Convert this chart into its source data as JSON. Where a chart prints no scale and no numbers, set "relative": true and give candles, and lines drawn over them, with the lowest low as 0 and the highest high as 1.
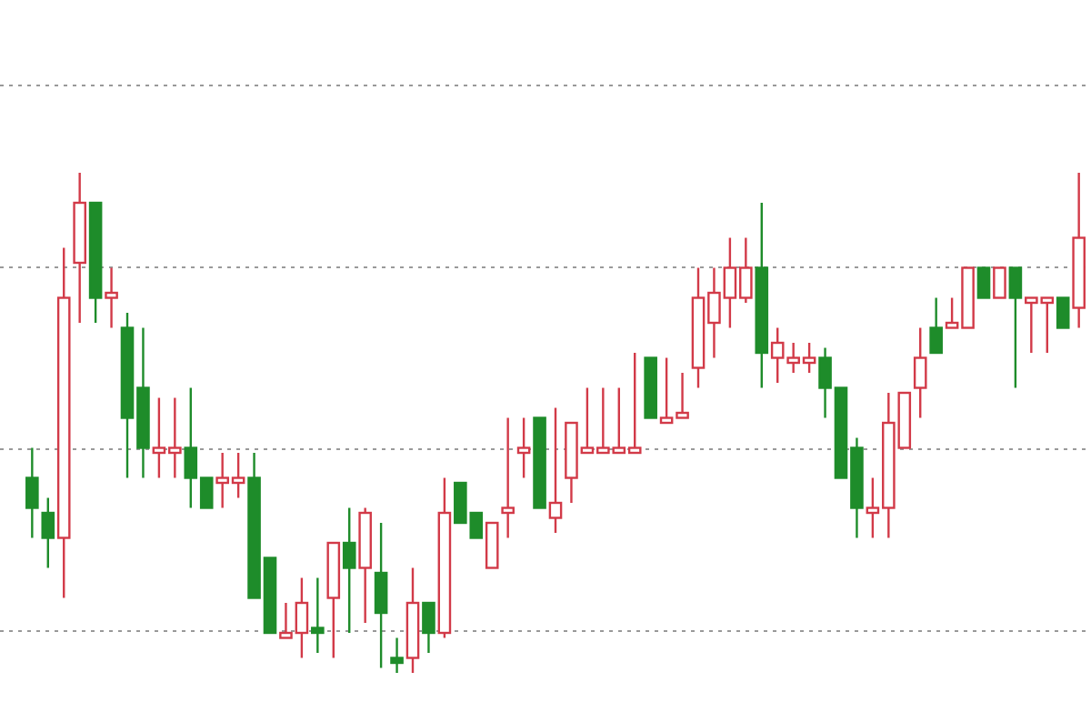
{
  "chart_data": {
    "type": "candlestick",
    "relative": true,
    "grid": "y",
    "categories": [
      null,
      null,
      null,
      null,
      null,
      null,
      null,
      null,
      null,
      null,
      null,
      null,
      null,
      null,
      null,
      null,
      null,
      null,
      null,
      null,
      null,
      null,
      null,
      null,
      null,
      null,
      null,
      null,
      null,
      null,
      null,
      null,
      null,
      null,
      null,
      null,
      null,
      null,
      null,
      null,
      null,
      null,
      null,
      null,
      null,
      null,
      null,
      null,
      null,
      null,
      null,
      null,
      null,
      null,
      null,
      null,
      null,
      null,
      null,
      null,
      null,
      null,
      null,
      null,
      null,
      null,
      null
    ],
    "ohlc": [
      [
        0.39,
        0.45,
        0.27,
        0.33
      ],
      [
        0.32,
        0.35,
        0.21,
        0.27
      ],
      [
        0.27,
        0.85,
        0.15,
        0.75
      ],
      [
        0.82,
        1.0,
        0.7,
        0.94
      ],
      [
        0.94,
        0.94,
        0.7,
        0.75
      ],
      [
        0.75,
        0.81,
        0.69,
        0.76
      ],
      [
        0.69,
        0.72,
        0.39,
        0.51
      ],
      [
        0.57,
        0.69,
        0.39,
        0.45
      ],
      [
        0.44,
        0.55,
        0.39,
        0.45
      ],
      [
        0.44,
        0.55,
        0.39,
        0.45
      ],
      [
        0.45,
        0.57,
        0.33,
        0.39
      ],
      [
        0.39,
        0.39,
        0.33,
        0.33
      ],
      [
        0.38,
        0.44,
        0.33,
        0.39
      ],
      [
        0.38,
        0.44,
        0.35,
        0.39
      ],
      [
        0.39,
        0.44,
        0.15,
        0.15
      ],
      [
        0.23,
        0.23,
        0.08,
        0.08
      ],
      [
        0.07,
        0.14,
        0.07,
        0.08
      ],
      [
        0.08,
        0.19,
        0.03,
        0.14
      ],
      [
        0.09,
        0.19,
        0.04,
        0.08
      ],
      [
        0.15,
        0.26,
        0.03,
        0.26
      ],
      [
        0.26,
        0.33,
        0.08,
        0.21
      ],
      [
        0.21,
        0.33,
        0.1,
        0.32
      ],
      [
        0.2,
        0.3,
        0.01,
        0.12
      ],
      [
        0.03,
        0.07,
        0.0,
        0.02
      ],
      [
        0.03,
        0.21,
        0.0,
        0.14
      ],
      [
        0.14,
        0.14,
        0.04,
        0.08
      ],
      [
        0.08,
        0.39,
        0.07,
        0.32
      ],
      [
        0.38,
        0.38,
        0.3,
        0.3
      ],
      [
        0.32,
        0.32,
        0.27,
        0.27
      ],
      [
        0.21,
        0.3,
        0.21,
        0.3
      ],
      [
        0.32,
        0.51,
        0.27,
        0.33
      ],
      [
        0.44,
        0.51,
        0.39,
        0.45
      ],
      [
        0.51,
        0.51,
        0.33,
        0.33
      ],
      [
        0.31,
        0.53,
        0.28,
        0.34
      ],
      [
        0.39,
        0.5,
        0.34,
        0.5
      ],
      [
        0.44,
        0.57,
        0.44,
        0.45
      ],
      [
        0.44,
        0.57,
        0.44,
        0.45
      ],
      [
        0.44,
        0.57,
        0.44,
        0.45
      ],
      [
        0.44,
        0.64,
        0.44,
        0.45
      ],
      [
        0.63,
        0.63,
        0.51,
        0.51
      ],
      [
        0.5,
        0.63,
        0.5,
        0.51
      ],
      [
        0.51,
        0.6,
        0.51,
        0.52
      ],
      [
        0.61,
        0.81,
        0.57,
        0.75
      ],
      [
        0.7,
        0.81,
        0.63,
        0.76
      ],
      [
        0.75,
        0.87,
        0.69,
        0.81
      ],
      [
        0.75,
        0.87,
        0.74,
        0.81
      ],
      [
        0.81,
        0.94,
        0.57,
        0.64
      ],
      [
        0.63,
        0.69,
        0.58,
        0.66
      ],
      [
        0.62,
        0.66,
        0.6,
        0.63
      ],
      [
        0.62,
        0.66,
        0.6,
        0.63
      ],
      [
        0.63,
        0.65,
        0.51,
        0.57
      ],
      [
        0.57,
        0.57,
        0.39,
        0.39
      ],
      [
        0.45,
        0.47,
        0.27,
        0.33
      ],
      [
        0.32,
        0.39,
        0.27,
        0.33
      ],
      [
        0.33,
        0.56,
        0.27,
        0.5
      ],
      [
        0.45,
        0.56,
        0.45,
        0.56
      ],
      [
        0.57,
        0.69,
        0.51,
        0.63
      ],
      [
        0.69,
        0.75,
        0.64,
        0.64
      ],
      [
        0.69,
        0.75,
        0.69,
        0.7
      ],
      [
        0.69,
        0.81,
        0.69,
        0.81
      ],
      [
        0.81,
        0.81,
        0.75,
        0.75
      ],
      [
        0.75,
        0.81,
        0.75,
        0.81
      ],
      [
        0.81,
        0.81,
        0.57,
        0.75
      ],
      [
        0.74,
        0.75,
        0.64,
        0.75
      ],
      [
        0.74,
        0.75,
        0.64,
        0.75
      ],
      [
        0.75,
        0.75,
        0.69,
        0.69
      ],
      [
        0.73,
        1.0,
        0.69,
        0.87
      ]
    ],
    "colors": [
      "#1e8c2a",
      "#1e8c2a",
      "#d23a48",
      "#d23a48",
      "#1e8c2a",
      "#d23a48",
      "#1e8c2a",
      "#1e8c2a",
      "#d23a48",
      "#d23a48",
      "#1e8c2a",
      "#1e8c2a",
      "#d23a48",
      "#d23a48",
      "#1e8c2a",
      "#1e8c2a",
      "#d23a48",
      "#d23a48",
      "#1e8c2a",
      "#d23a48",
      "#1e8c2a",
      "#d23a48",
      "#1e8c2a",
      "#1e8c2a",
      "#d23a48",
      "#1e8c2a",
      "#d23a48",
      "#1e8c2a",
      "#1e8c2a",
      "#d23a48",
      "#d23a48",
      "#d23a48",
      "#1e8c2a",
      "#d23a48",
      "#d23a48",
      "#d23a48",
      "#d23a48",
      "#d23a48",
      "#d23a48",
      "#1e8c2a",
      "#d23a48",
      "#d23a48",
      "#d23a48",
      "#d23a48",
      "#d23a48",
      "#d23a48",
      "#1e8c2a",
      "#d23a48",
      "#d23a48",
      "#d23a48",
      "#1e8c2a",
      "#1e8c2a",
      "#1e8c2a",
      "#d23a48",
      "#d23a48",
      "#d23a48",
      "#d23a48",
      "#1e8c2a",
      "#d23a48",
      "#d23a48",
      "#1e8c2a",
      "#d23a48",
      "#1e8c2a",
      "#d23a48",
      "#d23a48",
      "#1e8c2a",
      "#d23a48"
    ]
  }
}
